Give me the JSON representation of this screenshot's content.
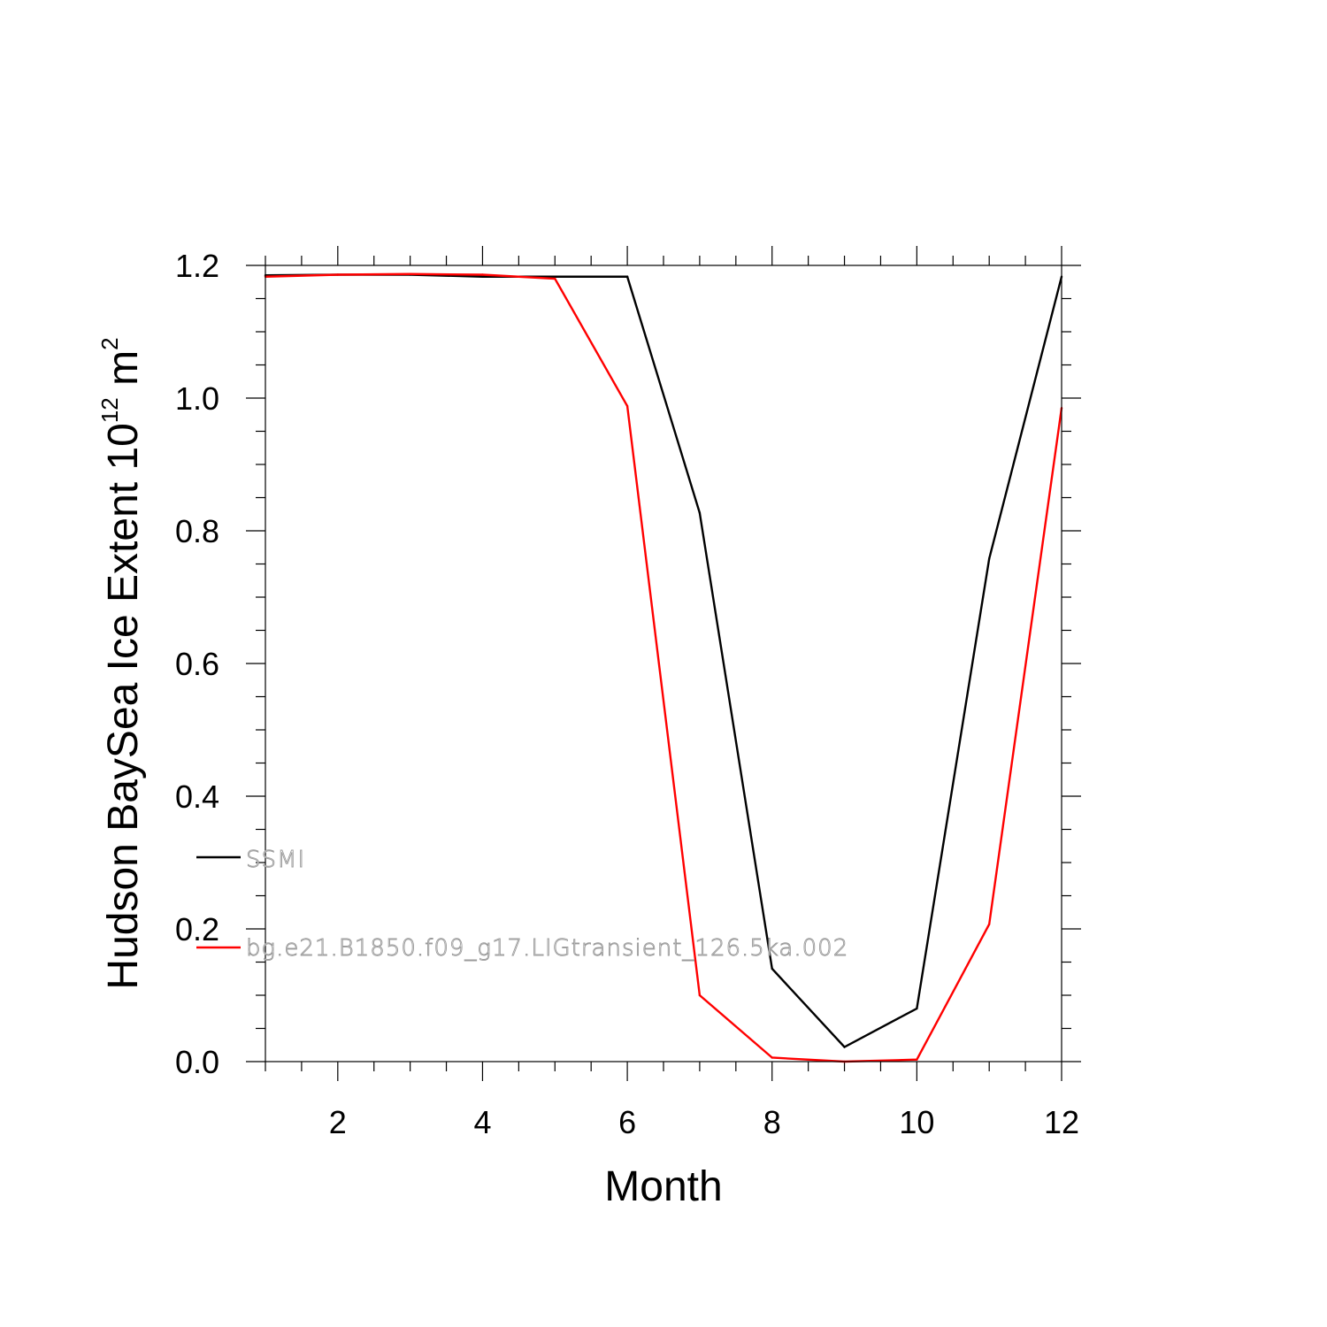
{
  "chart_data": {
    "type": "line",
    "xlabel": "Month",
    "ylabel": {
      "main": "Hudson BaySea Ice Extent 10",
      "exponent": "12",
      "unit": " m",
      "unit_exponent": "2"
    },
    "xlim": [
      1,
      12
    ],
    "ylim": [
      0,
      1.2
    ],
    "x_ticks": [
      2,
      4,
      6,
      8,
      10,
      12
    ],
    "x_tick_labels": [
      "2",
      "4",
      "6",
      "8",
      "10",
      "12"
    ],
    "y_ticks": [
      0,
      0.2,
      0.4,
      0.6,
      0.8,
      1.0,
      1.2
    ],
    "y_tick_labels": [
      "0.0",
      "0.2",
      "0.4",
      "0.6",
      "0.8",
      "1.0",
      "1.2"
    ],
    "grid": false,
    "legend_placement": "left",
    "x": [
      1,
      2,
      3,
      4,
      5,
      6,
      7,
      8,
      9,
      10,
      11,
      12
    ],
    "series": [
      {
        "name": "SSMI",
        "color": "#000000",
        "values": [
          1.185,
          1.186,
          1.186,
          1.183,
          1.183,
          1.183,
          0.827,
          0.14,
          0.022,
          0.08,
          0.758,
          1.183
        ]
      },
      {
        "name": "bg.e21.B1850.f09_g17.LIGtransient_126.5ka.002",
        "color": "#ff0000",
        "values": [
          1.183,
          1.186,
          1.187,
          1.186,
          1.18,
          0.988,
          0.1,
          0.006,
          0.0,
          0.003,
          0.207,
          0.985
        ]
      }
    ]
  }
}
